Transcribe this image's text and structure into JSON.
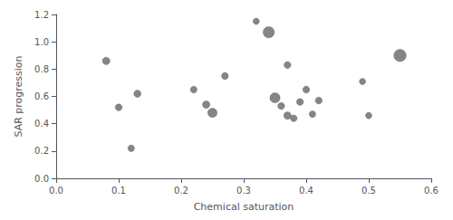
{
  "chart_data": {
    "type": "scatter",
    "xlabel": "Chemical saturation",
    "ylabel": "SAR progression",
    "x": [
      0.08,
      0.1,
      0.12,
      0.13,
      0.22,
      0.24,
      0.25,
      0.27,
      0.32,
      0.34,
      0.35,
      0.36,
      0.37,
      0.37,
      0.38,
      0.39,
      0.4,
      0.41,
      0.42,
      0.49,
      0.5,
      0.55
    ],
    "values": [
      0.86,
      0.52,
      0.22,
      0.62,
      0.65,
      0.54,
      0.48,
      0.75,
      1.15,
      1.07,
      0.59,
      0.53,
      0.83,
      0.46,
      0.44,
      0.56,
      0.65,
      0.47,
      0.57,
      0.71,
      0.46,
      0.9
    ],
    "sizes": [
      35,
      30,
      28,
      32,
      28,
      35,
      55,
      30,
      25,
      80,
      65,
      30,
      30,
      35,
      28,
      30,
      30,
      28,
      30,
      25,
      25,
      95
    ],
    "color": "#787878",
    "xlim": [
      0.0,
      0.6
    ],
    "ylim": [
      0.0,
      1.2
    ],
    "xticks": [
      {
        "value": 0.0,
        "label": "0.0"
      },
      0.1,
      0.2,
      0.3,
      0.4,
      0.5,
      0.6
    ],
    "yticks": [
      {
        "value": 0.0,
        "label": "0.0"
      },
      0.2,
      0.4,
      0.6,
      0.8,
      {
        "value": 1.0,
        "label": "1.0"
      },
      1.2
    ],
    "grid": false
  }
}
